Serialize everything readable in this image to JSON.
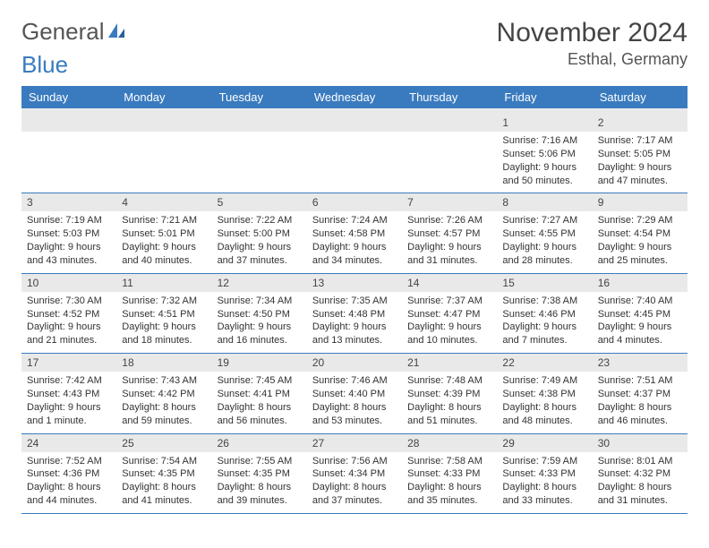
{
  "logo": {
    "text1": "General",
    "text2": "Blue"
  },
  "title": "November 2024",
  "location": "Esthal, Germany",
  "colors": {
    "headerBg": "#3a7bbf",
    "headerText": "#ffffff",
    "daynumBg": "#e9e9e9",
    "border": "#3a7bbf",
    "bodyText": "#333333",
    "titleText": "#444444"
  },
  "weekdays": [
    "Sunday",
    "Monday",
    "Tuesday",
    "Wednesday",
    "Thursday",
    "Friday",
    "Saturday"
  ],
  "startOffset": 5,
  "days": [
    {
      "n": 1,
      "sunrise": "7:16 AM",
      "sunset": "5:06 PM",
      "daylight": "9 hours and 50 minutes."
    },
    {
      "n": 2,
      "sunrise": "7:17 AM",
      "sunset": "5:05 PM",
      "daylight": "9 hours and 47 minutes."
    },
    {
      "n": 3,
      "sunrise": "7:19 AM",
      "sunset": "5:03 PM",
      "daylight": "9 hours and 43 minutes."
    },
    {
      "n": 4,
      "sunrise": "7:21 AM",
      "sunset": "5:01 PM",
      "daylight": "9 hours and 40 minutes."
    },
    {
      "n": 5,
      "sunrise": "7:22 AM",
      "sunset": "5:00 PM",
      "daylight": "9 hours and 37 minutes."
    },
    {
      "n": 6,
      "sunrise": "7:24 AM",
      "sunset": "4:58 PM",
      "daylight": "9 hours and 34 minutes."
    },
    {
      "n": 7,
      "sunrise": "7:26 AM",
      "sunset": "4:57 PM",
      "daylight": "9 hours and 31 minutes."
    },
    {
      "n": 8,
      "sunrise": "7:27 AM",
      "sunset": "4:55 PM",
      "daylight": "9 hours and 28 minutes."
    },
    {
      "n": 9,
      "sunrise": "7:29 AM",
      "sunset": "4:54 PM",
      "daylight": "9 hours and 25 minutes."
    },
    {
      "n": 10,
      "sunrise": "7:30 AM",
      "sunset": "4:52 PM",
      "daylight": "9 hours and 21 minutes."
    },
    {
      "n": 11,
      "sunrise": "7:32 AM",
      "sunset": "4:51 PM",
      "daylight": "9 hours and 18 minutes."
    },
    {
      "n": 12,
      "sunrise": "7:34 AM",
      "sunset": "4:50 PM",
      "daylight": "9 hours and 16 minutes."
    },
    {
      "n": 13,
      "sunrise": "7:35 AM",
      "sunset": "4:48 PM",
      "daylight": "9 hours and 13 minutes."
    },
    {
      "n": 14,
      "sunrise": "7:37 AM",
      "sunset": "4:47 PM",
      "daylight": "9 hours and 10 minutes."
    },
    {
      "n": 15,
      "sunrise": "7:38 AM",
      "sunset": "4:46 PM",
      "daylight": "9 hours and 7 minutes."
    },
    {
      "n": 16,
      "sunrise": "7:40 AM",
      "sunset": "4:45 PM",
      "daylight": "9 hours and 4 minutes."
    },
    {
      "n": 17,
      "sunrise": "7:42 AM",
      "sunset": "4:43 PM",
      "daylight": "9 hours and 1 minute."
    },
    {
      "n": 18,
      "sunrise": "7:43 AM",
      "sunset": "4:42 PM",
      "daylight": "8 hours and 59 minutes."
    },
    {
      "n": 19,
      "sunrise": "7:45 AM",
      "sunset": "4:41 PM",
      "daylight": "8 hours and 56 minutes."
    },
    {
      "n": 20,
      "sunrise": "7:46 AM",
      "sunset": "4:40 PM",
      "daylight": "8 hours and 53 minutes."
    },
    {
      "n": 21,
      "sunrise": "7:48 AM",
      "sunset": "4:39 PM",
      "daylight": "8 hours and 51 minutes."
    },
    {
      "n": 22,
      "sunrise": "7:49 AM",
      "sunset": "4:38 PM",
      "daylight": "8 hours and 48 minutes."
    },
    {
      "n": 23,
      "sunrise": "7:51 AM",
      "sunset": "4:37 PM",
      "daylight": "8 hours and 46 minutes."
    },
    {
      "n": 24,
      "sunrise": "7:52 AM",
      "sunset": "4:36 PM",
      "daylight": "8 hours and 44 minutes."
    },
    {
      "n": 25,
      "sunrise": "7:54 AM",
      "sunset": "4:35 PM",
      "daylight": "8 hours and 41 minutes."
    },
    {
      "n": 26,
      "sunrise": "7:55 AM",
      "sunset": "4:35 PM",
      "daylight": "8 hours and 39 minutes."
    },
    {
      "n": 27,
      "sunrise": "7:56 AM",
      "sunset": "4:34 PM",
      "daylight": "8 hours and 37 minutes."
    },
    {
      "n": 28,
      "sunrise": "7:58 AM",
      "sunset": "4:33 PM",
      "daylight": "8 hours and 35 minutes."
    },
    {
      "n": 29,
      "sunrise": "7:59 AM",
      "sunset": "4:33 PM",
      "daylight": "8 hours and 33 minutes."
    },
    {
      "n": 30,
      "sunrise": "8:01 AM",
      "sunset": "4:32 PM",
      "daylight": "8 hours and 31 minutes."
    }
  ],
  "labels": {
    "sunrise": "Sunrise:",
    "sunset": "Sunset:",
    "daylight": "Daylight:"
  }
}
